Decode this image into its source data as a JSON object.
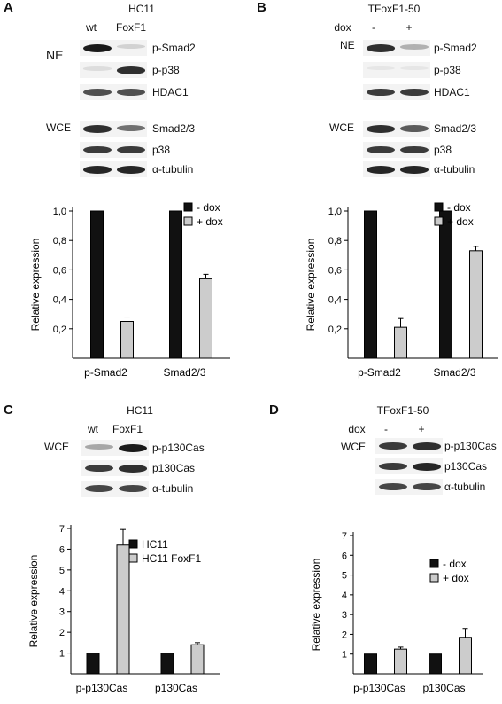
{
  "colors": {
    "black_bar": "#111111",
    "grey_bar": "#cccccc",
    "band": "#1a1a1a"
  },
  "panels": {
    "A": {
      "label": "A",
      "title": "HC11",
      "lanes": [
        "wt",
        "FoxF1"
      ],
      "groups": [
        "NE",
        "WCE"
      ],
      "blots": [
        "p-Smad2",
        "p-p38",
        "HDAC1",
        "Smad2/3",
        "p38",
        "α-tubulin"
      ],
      "bands": [
        [
          1.0,
          0.15
        ],
        [
          0.1,
          0.9
        ],
        [
          0.75,
          0.75
        ],
        [
          0.9,
          0.6
        ],
        [
          0.85,
          0.85
        ],
        [
          0.95,
          0.95
        ]
      ]
    },
    "B": {
      "label": "B",
      "title": "TFoxF1-50",
      "lanes_label": "dox",
      "lanes": [
        "-",
        "+"
      ],
      "groups": [
        "NE",
        "WCE"
      ],
      "blots": [
        "p-Smad2",
        "p-p38",
        "HDAC1",
        "Smad2/3",
        "p38",
        "α-tubulin"
      ],
      "bands": [
        [
          0.9,
          0.3
        ],
        [
          0.05,
          0.05
        ],
        [
          0.85,
          0.85
        ],
        [
          0.9,
          0.7
        ],
        [
          0.85,
          0.85
        ],
        [
          0.95,
          0.95
        ]
      ]
    },
    "C": {
      "label": "C",
      "title": "HC11",
      "lanes": [
        "wt",
        "FoxF1"
      ],
      "groups": [
        "WCE"
      ],
      "blots": [
        "p-p130Cas",
        "p130Cas",
        "α-tubulin"
      ],
      "bands": [
        [
          0.35,
          1.0
        ],
        [
          0.85,
          0.9
        ],
        [
          0.8,
          0.8
        ]
      ]
    },
    "D": {
      "label": "D",
      "title": "TFoxF1-50",
      "lanes_label": "dox",
      "lanes": [
        "-",
        "+"
      ],
      "groups": [
        "WCE"
      ],
      "blots": [
        "p-p130Cas",
        "p130Cas",
        "α-tubulin"
      ],
      "bands": [
        [
          0.85,
          0.9
        ],
        [
          0.85,
          0.95
        ],
        [
          0.8,
          0.8
        ]
      ]
    }
  },
  "chart_data": [
    {
      "panel": "A",
      "type": "bar",
      "categories": [
        "p-Smad2",
        "Smad2/3"
      ],
      "series": [
        {
          "name": "- dox",
          "values": [
            1.0,
            1.0
          ],
          "errors": [
            0,
            0
          ]
        },
        {
          "name": "+ dox",
          "values": [
            0.25,
            0.54
          ],
          "errors": [
            0.03,
            0.03
          ]
        }
      ],
      "ylabel": "Relative expression",
      "ylim": [
        0.0,
        1.0
      ],
      "yticks": [
        "0,2",
        "0,4",
        "0,6",
        "0,8",
        "1,0"
      ],
      "ytick_values": [
        0.2,
        0.4,
        0.6,
        0.8,
        1.0
      ],
      "legend": "top-right",
      "grid": false
    },
    {
      "panel": "B",
      "type": "bar",
      "categories": [
        "p-Smad2",
        "Smad2/3"
      ],
      "series": [
        {
          "name": "- dox",
          "values": [
            1.0,
            1.0
          ],
          "errors": [
            0,
            0
          ]
        },
        {
          "name": "+ dox",
          "values": [
            0.21,
            0.73
          ],
          "errors": [
            0.06,
            0.03
          ]
        }
      ],
      "ylabel": "Relative expression",
      "ylim": [
        0.0,
        1.0
      ],
      "yticks": [
        "0,2",
        "0,4",
        "0,6",
        "0,8",
        "1,0"
      ],
      "ytick_values": [
        0.2,
        0.4,
        0.6,
        0.8,
        1.0
      ],
      "legend": "top-right",
      "grid": false
    },
    {
      "panel": "C",
      "type": "bar",
      "categories": [
        "p-p130Cas",
        "p130Cas"
      ],
      "series": [
        {
          "name": "HC11",
          "values": [
            1.0,
            1.0
          ],
          "errors": [
            0,
            0
          ]
        },
        {
          "name": "HC11 FoxF1",
          "values": [
            6.2,
            1.4
          ],
          "errors": [
            0.75,
            0.1
          ]
        }
      ],
      "ylabel": "Relative expression",
      "ylim": [
        0,
        7
      ],
      "yticks": [
        "1",
        "2",
        "3",
        "4",
        "5",
        "6",
        "7"
      ],
      "ytick_values": [
        1,
        2,
        3,
        4,
        5,
        6,
        7
      ],
      "legend": "top-right",
      "grid": false
    },
    {
      "panel": "D",
      "type": "bar",
      "categories": [
        "p-p130Cas",
        "p130Cas"
      ],
      "series": [
        {
          "name": "- dox",
          "values": [
            1.0,
            1.0
          ],
          "errors": [
            0,
            0
          ]
        },
        {
          "name": "+ dox",
          "values": [
            1.25,
            1.85
          ],
          "errors": [
            0.1,
            0.45
          ]
        }
      ],
      "ylabel": "Relative expression",
      "ylim": [
        0,
        7
      ],
      "yticks": [
        "1",
        "2",
        "3",
        "4",
        "5",
        "6",
        "7"
      ],
      "ytick_values": [
        1,
        2,
        3,
        4,
        5,
        6,
        7
      ],
      "legend": "top-right",
      "grid": false
    }
  ]
}
